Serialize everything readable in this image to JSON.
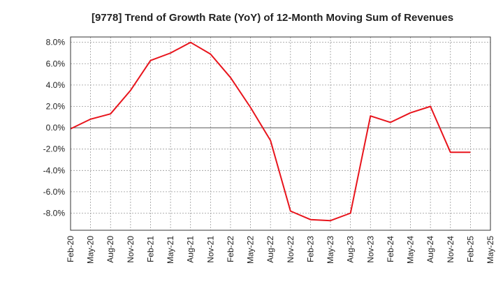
{
  "chart_data": {
    "type": "line",
    "title": "[9778]  Trend of Growth Rate (YoY) of 12-Month Moving Sum of Revenues",
    "xlabel": "",
    "ylabel": "",
    "x": [
      "Feb-20",
      "May-20",
      "Aug-20",
      "Nov-20",
      "Feb-21",
      "May-21",
      "Aug-21",
      "Nov-21",
      "Feb-22",
      "May-22",
      "Aug-22",
      "Nov-22",
      "Feb-23",
      "May-23",
      "Aug-23",
      "Nov-23",
      "Feb-24",
      "May-24",
      "Aug-24",
      "Nov-24",
      "Feb-25"
    ],
    "x_ticks": [
      "Feb-20",
      "May-20",
      "Aug-20",
      "Nov-20",
      "Feb-21",
      "May-21",
      "Aug-21",
      "Nov-21",
      "Feb-22",
      "May-22",
      "Aug-22",
      "Nov-22",
      "Feb-23",
      "May-23",
      "Aug-23",
      "Nov-23",
      "Feb-24",
      "May-24",
      "Aug-24",
      "Nov-24",
      "Feb-25",
      "May-25"
    ],
    "y_ticks": [
      "8.0%",
      "6.0%",
      "4.0%",
      "2.0%",
      "0.0%",
      "-2.0%",
      "-4.0%",
      "-6.0%",
      "-8.0%"
    ],
    "y_tick_values": [
      8,
      6,
      4,
      2,
      0,
      -2,
      -4,
      -6,
      -8
    ],
    "ylim": [
      -9.6,
      8.5
    ],
    "grid": true,
    "legend": "none",
    "series": [
      {
        "color": "#e8141c",
        "values": [
          -0.1,
          0.8,
          1.3,
          3.5,
          6.3,
          7.0,
          8.0,
          6.9,
          4.7,
          1.9,
          -1.2,
          -7.8,
          -8.6,
          -8.7,
          -8.0,
          1.1,
          0.5,
          1.4,
          2.0,
          -2.3,
          -2.3
        ]
      }
    ]
  }
}
